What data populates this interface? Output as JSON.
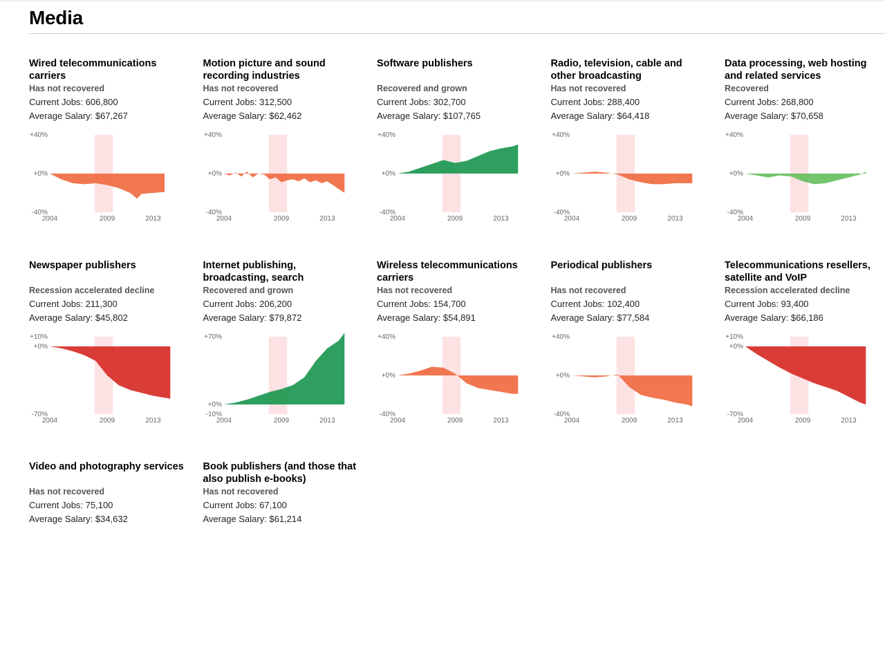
{
  "page": {
    "title": "Media"
  },
  "colors": {
    "not_recovered": "#f07048",
    "declining": "#d8312c",
    "grown": "#239a55",
    "recovered": "#6cc164",
    "recession_band": "#fde2e4"
  },
  "chart_data": [
    {
      "type": "area",
      "title": "Wired telecommunications carriers",
      "status": "Has not recovered",
      "jobs_label": "Current Jobs: 606,800",
      "salary_label": "Average Salary: $67,267",
      "color": "#f07048",
      "ylim": [
        -40,
        40
      ],
      "y_ticks": [
        "+40%",
        "+0%",
        "-40%"
      ],
      "zero_label": "+0%",
      "x_ticks": [
        "2004",
        "2009",
        "2013"
      ],
      "recession": [
        2007.9,
        2009.5
      ],
      "x": [
        2004,
        2005,
        2006,
        2007,
        2008,
        2009,
        2010,
        2011,
        2011.6,
        2012,
        2013,
        2014
      ],
      "values": [
        0,
        -6,
        -10,
        -11,
        -10,
        -12,
        -15,
        -20,
        -26,
        -21,
        -20,
        -19
      ]
    },
    {
      "type": "area",
      "title": "Motion picture and sound recording industries",
      "status": "Has not recovered",
      "jobs_label": "Current Jobs: 312,500",
      "salary_label": "Average Salary: $62,462",
      "color": "#f07048",
      "ylim": [
        -40,
        40
      ],
      "y_ticks": [
        "+40%",
        "+0%",
        "-40%"
      ],
      "zero_label": "+0%",
      "x_ticks": [
        "2004",
        "2009",
        "2013"
      ],
      "recession": [
        2007.9,
        2009.5
      ],
      "x": [
        2004,
        2004.5,
        2005,
        2005.5,
        2006,
        2006.5,
        2007,
        2007.5,
        2008,
        2008.5,
        2009,
        2009.5,
        2010,
        2010.5,
        2011,
        2011.5,
        2012,
        2012.5,
        2013,
        2013.5,
        2014,
        2014.5
      ],
      "values": [
        0,
        -2,
        1,
        -3,
        2,
        -4,
        0,
        -1,
        -6,
        -4,
        -9,
        -7,
        -6,
        -8,
        -5,
        -9,
        -7,
        -10,
        -8,
        -12,
        -16,
        -20
      ]
    },
    {
      "type": "area",
      "title": "Software publishers",
      "status": "Recovered and grown",
      "jobs_label": "Current Jobs: 302,700",
      "salary_label": "Average Salary: $107,765",
      "color": "#239a55",
      "ylim": [
        -40,
        40
      ],
      "y_ticks": [
        "+40%",
        "+0%",
        "-40%"
      ],
      "zero_label": "+0%",
      "x_ticks": [
        "2004",
        "2009",
        "2013"
      ],
      "recession": [
        2007.9,
        2009.5
      ],
      "x": [
        2004,
        2005,
        2006,
        2007,
        2008,
        2009,
        2010,
        2011,
        2012,
        2013,
        2014,
        2014.5
      ],
      "values": [
        0,
        2,
        6,
        10,
        14,
        11,
        13,
        18,
        23,
        26,
        28,
        30
      ]
    },
    {
      "type": "area",
      "title": "Radio, television, cable and other broadcasting",
      "status": "Has not recovered",
      "jobs_label": "Current Jobs: 288,400",
      "salary_label": "Average Salary: $64,418",
      "color": "#f07048",
      "ylim": [
        -40,
        40
      ],
      "y_ticks": [
        "+40%",
        "+0%",
        "-40%"
      ],
      "zero_label": "+0%",
      "x_ticks": [
        "2004",
        "2009",
        "2013"
      ],
      "recession": [
        2007.9,
        2009.5
      ],
      "x": [
        2004,
        2005,
        2006,
        2007,
        2008,
        2009,
        2010,
        2011,
        2012,
        2013,
        2014,
        2014.5
      ],
      "values": [
        0,
        1,
        2,
        1,
        -1,
        -6,
        -9,
        -11,
        -11,
        -10,
        -10,
        -10
      ]
    },
    {
      "type": "area",
      "title": "Data processing, web hosting and related services",
      "status": "Recovered",
      "jobs_label": "Current Jobs: 268,800",
      "salary_label": "Average Salary: $70,658",
      "color": "#6cc164",
      "ylim": [
        -40,
        40
      ],
      "y_ticks": [
        "+40%",
        "+0%",
        "-40%"
      ],
      "zero_label": "+0%",
      "x_ticks": [
        "2004",
        "2009",
        "2013"
      ],
      "recession": [
        2007.9,
        2009.5
      ],
      "x": [
        2004,
        2005,
        2006,
        2007,
        2008,
        2009,
        2010,
        2011,
        2012,
        2013,
        2014,
        2014.5
      ],
      "values": [
        0,
        -2,
        -4,
        -2,
        -3,
        -8,
        -11,
        -10,
        -7,
        -4,
        -1,
        2
      ]
    },
    {
      "type": "area",
      "title": "Newspaper publishers",
      "status": "Recession accelerated decline",
      "jobs_label": "Current Jobs: 211,300",
      "salary_label": "Average Salary: $45,802",
      "color": "#d8312c",
      "ylim": [
        -70,
        10
      ],
      "y_ticks": [
        "+10%",
        "+0%",
        "-70%"
      ],
      "zero_label": "+0%",
      "x_ticks": [
        "2004",
        "2009",
        "2013"
      ],
      "recession": [
        2007.9,
        2009.5
      ],
      "x": [
        2004,
        2005,
        2006,
        2007,
        2008,
        2009,
        2010,
        2011,
        2012,
        2013,
        2014,
        2014.5
      ],
      "values": [
        0,
        -2,
        -5,
        -9,
        -15,
        -30,
        -40,
        -45,
        -48,
        -51,
        -53,
        -54
      ]
    },
    {
      "type": "area",
      "title": "Internet publishing, broadcasting, search",
      "status": "Recovered and grown",
      "jobs_label": "Current Jobs: 206,200",
      "salary_label": "Average Salary: $79,872",
      "color": "#239a55",
      "ylim": [
        -10,
        70
      ],
      "y_ticks": [
        "+70%",
        "+0%",
        "-10%"
      ],
      "zero_label": "+0%",
      "x_ticks": [
        "2004",
        "2009",
        "2013"
      ],
      "recession": [
        2007.9,
        2009.5
      ],
      "x": [
        2004,
        2005,
        2006,
        2007,
        2008,
        2009,
        2010,
        2011,
        2012,
        2013,
        2014,
        2014.5
      ],
      "values": [
        0,
        2,
        5,
        9,
        13,
        16,
        20,
        28,
        45,
        58,
        66,
        74
      ]
    },
    {
      "type": "area",
      "title": "Wireless telecommunications carriers",
      "status": "Has not recovered",
      "jobs_label": "Current Jobs: 154,700",
      "salary_label": "Average Salary: $54,891",
      "color": "#f07048",
      "ylim": [
        -40,
        40
      ],
      "y_ticks": [
        "+40%",
        "+0%",
        "-40%"
      ],
      "zero_label": "+0%",
      "x_ticks": [
        "2004",
        "2009",
        "2013"
      ],
      "recession": [
        2007.9,
        2009.5
      ],
      "x": [
        2004,
        2005,
        2006,
        2007,
        2008,
        2009,
        2010,
        2011,
        2012,
        2013,
        2014,
        2014.5
      ],
      "values": [
        0,
        2,
        5,
        9,
        8,
        2,
        -8,
        -13,
        -15,
        -17,
        -19,
        -19
      ]
    },
    {
      "type": "area",
      "title": "Periodical publishers",
      "status": "Has not recovered",
      "jobs_label": "Current Jobs: 102,400",
      "salary_label": "Average Salary: $77,584",
      "color": "#f07048",
      "ylim": [
        -40,
        40
      ],
      "y_ticks": [
        "+40%",
        "+0%",
        "-40%"
      ],
      "zero_label": "+0%",
      "x_ticks": [
        "2004",
        "2009",
        "2013"
      ],
      "recession": [
        2007.9,
        2009.5
      ],
      "x": [
        2004,
        2005,
        2006,
        2007,
        2008,
        2009,
        2010,
        2011,
        2012,
        2013,
        2014,
        2014.5
      ],
      "values": [
        0,
        -1,
        -2,
        -1,
        1,
        -12,
        -20,
        -23,
        -25,
        -28,
        -30,
        -32
      ]
    },
    {
      "type": "area",
      "title": "Telecommunications resellers, satellite and VoIP",
      "status": "Recession accelerated decline",
      "jobs_label": "Current Jobs: 93,400",
      "salary_label": "Average Salary: $66,186",
      "color": "#d8312c",
      "ylim": [
        -70,
        10
      ],
      "y_ticks": [
        "+10%",
        "+0%",
        "-70%"
      ],
      "zero_label": "+0%",
      "x_ticks": [
        "2004",
        "2009",
        "2013"
      ],
      "recession": [
        2007.9,
        2009.5
      ],
      "x": [
        2004,
        2005,
        2006,
        2007,
        2008,
        2009,
        2010,
        2011,
        2012,
        2013,
        2014,
        2014.5
      ],
      "values": [
        0,
        -8,
        -15,
        -22,
        -28,
        -33,
        -38,
        -42,
        -46,
        -52,
        -58,
        -60
      ]
    },
    {
      "type": "area",
      "title": "Video and photography services",
      "status": "Has not recovered",
      "jobs_label": "Current Jobs: 75,100",
      "salary_label": "Average Salary: $34,632",
      "show_chart": false
    },
    {
      "type": "area",
      "title": "Book publishers (and those that also publish e-books)",
      "status": "Has not recovered",
      "jobs_label": "Current Jobs: 67,100",
      "salary_label": "Average Salary: $61,214",
      "show_chart": false
    }
  ]
}
